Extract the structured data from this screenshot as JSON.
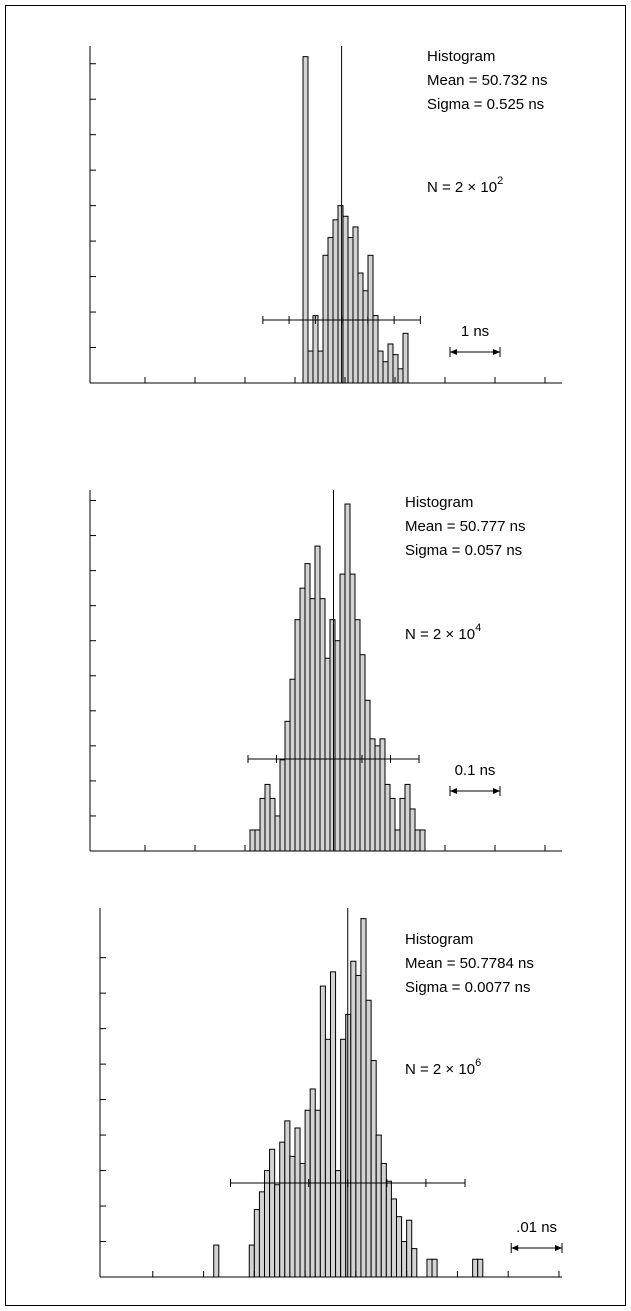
{
  "chart_data": [
    {
      "type": "histogram",
      "title": "Histogram",
      "mean": {
        "value": 50.732,
        "label": "Mean = 50.732 ns"
      },
      "sigma": {
        "value": 0.525,
        "label": "Sigma = 0.525 ns"
      },
      "n_label": {
        "text": "N = 2 × 10",
        "exponent": "2"
      },
      "scale_bar": {
        "value": 1,
        "label": "1 ns"
      },
      "bins": [
        49.96,
        50.06,
        50.16,
        50.26,
        50.36,
        50.46,
        50.56,
        50.66,
        50.76,
        50.86,
        50.96,
        51.06,
        51.16,
        51.26,
        51.36,
        51.46,
        51.56,
        51.66,
        51.76,
        51.86,
        51.96,
        52.06
      ],
      "values": [
        9.2,
        0.9,
        1.9,
        0.9,
        3.6,
        4.1,
        4.6,
        5.0,
        4.7,
        4.1,
        4.4,
        3.1,
        2.6,
        3.6,
        1.9,
        0.9,
        0.6,
        1.1,
        0.8,
        0.4,
        1.4
      ],
      "xlim": [
        45.7,
        55.14
      ],
      "xticks": [
        46.8,
        47.8,
        48.8,
        49.8,
        50.8,
        51.8,
        52.8,
        53.8,
        54.8
      ],
      "ylim": [
        0,
        9.5
      ],
      "yticks": [
        1,
        2,
        3,
        4,
        5,
        6,
        7,
        8,
        9
      ],
      "color": "#d3d3d3"
    },
    {
      "type": "histogram",
      "title": "Histogram",
      "mean": {
        "value": 50.777,
        "label": "Mean = 50.777 ns"
      },
      "sigma": {
        "value": 0.057,
        "label": "Sigma = 0.057 ns"
      },
      "n_label": {
        "text": "N = 2 × 10",
        "exponent": "4"
      },
      "scale_bar": {
        "value": 0.1,
        "label": "0.1 ns"
      },
      "bins": [
        50.61,
        50.62,
        50.63,
        50.64,
        50.65,
        50.66,
        50.67,
        50.68,
        50.69,
        50.7,
        50.71,
        50.72,
        50.73,
        50.74,
        50.75,
        50.76,
        50.77,
        50.78,
        50.79,
        50.8,
        50.81,
        50.82,
        50.83,
        50.84,
        50.85,
        50.86,
        50.87,
        50.88,
        50.89,
        50.9,
        50.91,
        50.92,
        50.93,
        50.94,
        50.95,
        50.96
      ],
      "values": [
        0.6,
        0.6,
        1.5,
        1.9,
        1.5,
        1.0,
        2.6,
        3.7,
        4.9,
        6.6,
        7.5,
        8.2,
        7.2,
        8.7,
        7.2,
        5.5,
        6.6,
        6.0,
        7.9,
        9.9,
        7.9,
        6.6,
        5.6,
        4.3,
        3.2,
        3.0,
        3.2,
        1.9,
        1.5,
        0.6,
        1.5,
        1.9,
        1.2,
        0.6,
        0.6
      ],
      "xlim": [
        50.29,
        51.234
      ],
      "xticks": [
        50.4,
        50.5,
        50.6,
        50.7,
        50.8,
        50.9,
        51.0,
        51.1,
        51.2
      ],
      "ylim": [
        0,
        10.3
      ],
      "yticks": [
        1,
        2,
        3,
        4,
        5,
        6,
        7,
        8,
        9,
        10
      ],
      "color": "#d3d3d3"
    },
    {
      "type": "histogram",
      "title": "Histogram",
      "mean": {
        "value": 50.7784,
        "label": "Mean = 50.7784 ns"
      },
      "sigma": {
        "value": 0.0077,
        "label": "Sigma = 0.0077 ns"
      },
      "n_label": {
        "text": "N = 2 × 10",
        "exponent": "6"
      },
      "scale_bar": {
        "value": 0.01,
        "label": ".01 ns"
      },
      "bins": [
        50.752,
        50.753,
        50.754,
        50.755,
        50.756,
        50.757,
        50.758,
        50.759,
        50.76,
        50.761,
        50.762,
        50.763,
        50.764,
        50.765,
        50.766,
        50.767,
        50.768,
        50.769,
        50.77,
        50.771,
        50.772,
        50.773,
        50.774,
        50.775,
        50.776,
        50.777,
        50.778,
        50.779,
        50.78,
        50.781,
        50.782,
        50.783,
        50.784,
        50.785,
        50.786,
        50.787,
        50.788,
        50.789,
        50.79,
        50.791,
        50.792,
        50.793,
        50.794,
        50.795,
        50.796,
        50.797,
        50.798,
        50.799,
        50.8,
        50.801,
        50.802,
        50.803,
        50.804,
        50.805
      ],
      "values": [
        0.9,
        0,
        0,
        0,
        0,
        0,
        0,
        0.9,
        1.9,
        2.4,
        3.0,
        3.6,
        2.6,
        3.8,
        4.4,
        3.4,
        4.2,
        3.2,
        4.7,
        5.3,
        4.7,
        8.2,
        6.7,
        8.6,
        3.0,
        6.7,
        7.4,
        8.9,
        8.5,
        10.1,
        7.8,
        6.1,
        4.0,
        3.2,
        2.7,
        2.2,
        1.7,
        1.0,
        1.6,
        0.8,
        0,
        0,
        0.5,
        0.5,
        0,
        0,
        0,
        0,
        0,
        0,
        0,
        0.5,
        0.5
      ],
      "xlim": [
        50.7296,
        50.8206
      ],
      "xticks": [
        50.74,
        50.75,
        50.76,
        50.77,
        50.78,
        50.79,
        50.8,
        50.81,
        50.82
      ],
      "ylim": [
        0,
        10.4
      ],
      "yticks": [
        1,
        2,
        3,
        4,
        5,
        6,
        7,
        8,
        9
      ],
      "color": "#d3d3d3"
    }
  ]
}
